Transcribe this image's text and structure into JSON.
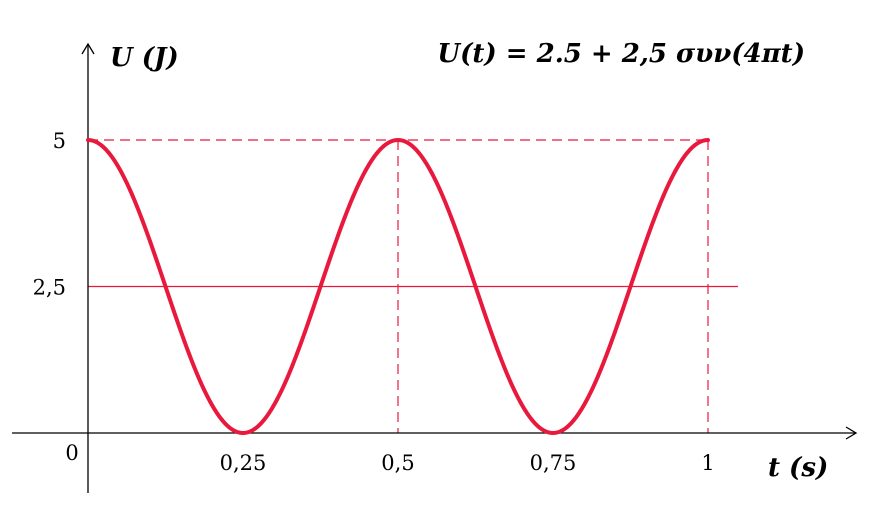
{
  "chart_data": {
    "type": "line",
    "formula": "U(t) =  2.5  +  2,5 συν(4πt)",
    "xlabel": "t (s)",
    "ylabel": "U (J)",
    "xlim": [
      0,
      1.2
    ],
    "ylim": [
      0,
      5
    ],
    "x_ticks": [
      {
        "value": 0.25,
        "label": "0,25"
      },
      {
        "value": 0.5,
        "label": "0,5"
      },
      {
        "value": 0.75,
        "label": "0,75"
      },
      {
        "value": 1,
        "label": "1"
      }
    ],
    "y_ticks": [
      {
        "value": 5,
        "label": "5"
      },
      {
        "value": 2.5,
        "label": "2,5"
      }
    ],
    "origin_label": "0",
    "series": [
      {
        "offset": 2.5,
        "amplitude": 2.5,
        "angular_frequency_factor": 4,
        "t_range": [
          0,
          1
        ],
        "color": "#e8193c"
      }
    ],
    "guides": {
      "dashed_level": 5,
      "solid_level": 2.5,
      "dashed_vertical_at": [
        0.5,
        1
      ],
      "color": "#e8193c"
    }
  }
}
